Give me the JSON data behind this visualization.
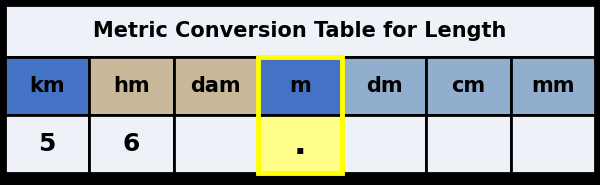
{
  "title": "Metric Conversion Table for Length",
  "columns": [
    "km",
    "hm",
    "dam",
    "m",
    "dm",
    "cm",
    "mm"
  ],
  "data_row": [
    "5",
    "6",
    "",
    ".",
    "",
    "",
    ""
  ],
  "header_colors": [
    "#4472C4",
    "#C9B99A",
    "#C9B99A",
    "#4472C4",
    "#92AECE",
    "#92AECE",
    "#92AECE"
  ],
  "data_colors": [
    "#EEF2F8",
    "#EEF2F8",
    "#EEF2F8",
    "#FFFE8A",
    "#EEF2F8",
    "#EEF2F8",
    "#EEF2F8"
  ],
  "title_bg": "#EEF2F8",
  "outer_bg": "#000000",
  "border_color": "#000000",
  "title_fontsize": 15,
  "header_fontsize": 15,
  "data_fontsize": 18,
  "fig_width": 6.0,
  "fig_height": 1.85,
  "dpi": 100
}
